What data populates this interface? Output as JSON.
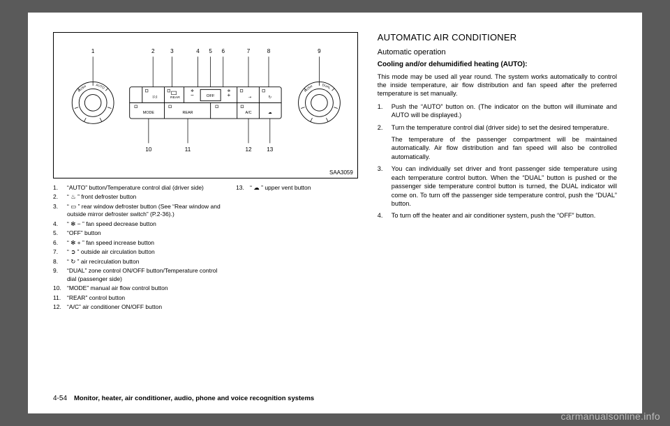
{
  "diagram": {
    "code": "SAA3059",
    "top_numbers": [
      "1",
      "2",
      "3",
      "4",
      "5",
      "6",
      "7",
      "8",
      "9"
    ],
    "bottom_numbers": [
      "10",
      "11",
      "12",
      "13"
    ],
    "panel_labels": {
      "rear_top": "REAR",
      "off": "OFF",
      "mode": "MODE",
      "rear_bottom": "REAR",
      "ac": "A/C",
      "dual": "DUAL",
      "auto": "AUTO",
      "push_left": "PUSH",
      "push_right": "PUSH"
    }
  },
  "legend_col1": [
    {
      "n": "1.",
      "t": "“AUTO” button/Temperature control dial (driver side)"
    },
    {
      "n": "2.",
      "t": "“ ♨ ” front defroster button"
    },
    {
      "n": "3.",
      "t": "“ ▭ ” rear window defroster button (See “Rear window and outside mirror defroster switch” (P.2-36).)"
    },
    {
      "n": "4.",
      "t": "“ ✻ − ” fan speed decrease button"
    },
    {
      "n": "5.",
      "t": "“OFF” button"
    },
    {
      "n": "6.",
      "t": "“ ✻ + ” fan speed increase button"
    },
    {
      "n": "7.",
      "t": "“ ➲ ” outside air circulation button"
    },
    {
      "n": "8.",
      "t": "“ ↻ ” air recirculation button"
    },
    {
      "n": "9.",
      "t": "“DUAL” zone control ON/OFF button/Temperature control dial (passenger side)"
    },
    {
      "n": "10.",
      "t": "“MODE” manual air flow control button"
    },
    {
      "n": "11.",
      "t": "“REAR” control button"
    },
    {
      "n": "12.",
      "t": "“A/C” air conditioner ON/OFF button"
    }
  ],
  "legend_col2": [
    {
      "n": "13.",
      "t": "“ ☁ ” upper vent button"
    }
  ],
  "right": {
    "h1": "AUTOMATIC AIR CONDITIONER",
    "h2": "Automatic operation",
    "h3": "Cooling and/or dehumidified heating (AUTO):",
    "intro": "This mode may be used all year round. The system works automatically to control the inside temperature, air flow distribution and fan speed after the preferred temperature is set manually.",
    "steps": [
      {
        "n": "1.",
        "t": "Push the “AUTO” button on. (The indicator on the button will illuminate and AUTO will be displayed.)"
      },
      {
        "n": "2.",
        "t": "Turn the temperature control dial (driver side) to set the desired temperature.",
        "sub": "The temperature of the passenger compartment will be maintained automatically. Air flow distribution and fan speed will also be controlled automatically."
      },
      {
        "n": "3.",
        "t": "You can individually set driver and front passenger side temperature using each temperature control button. When the “DUAL” button is pushed or the passenger side temperature control button is turned, the DUAL indicator will come on. To turn off the passenger side temperature control, push the “DUAL” button."
      },
      {
        "n": "4.",
        "t": "To turn off the heater and air conditioner system, push the “OFF” button."
      }
    ]
  },
  "footer": {
    "page": "4-54",
    "section": "Monitor, heater, air conditioner, audio, phone and voice recognition systems"
  },
  "watermark": "carmanualsonline.info"
}
